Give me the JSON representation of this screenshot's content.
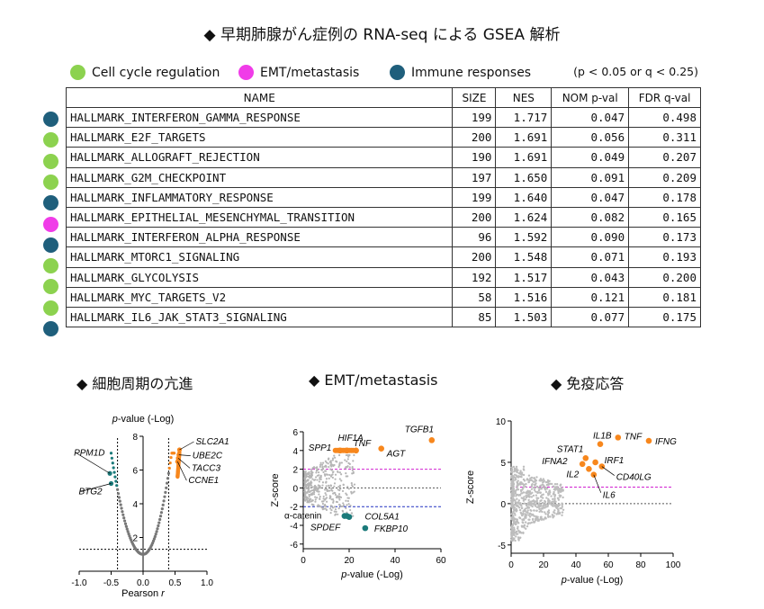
{
  "title": "◆  早期肺腺がん症例の RNA-seq による GSEA 解析",
  "legend": [
    {
      "label": "Cell cycle regulation",
      "color": "#8cd24f"
    },
    {
      "label": "EMT/metastasis",
      "color": "#f03ce8"
    },
    {
      "label": "Immune responses",
      "color": "#1f5f7c"
    }
  ],
  "threshold_note": "(p < 0.05 or q < 0.25)",
  "table": {
    "headers": [
      "NAME",
      "SIZE",
      "NES",
      "NOM p-val",
      "FDR q-val"
    ],
    "rows": [
      {
        "cat": "immune",
        "name": "HALLMARK_INTERFERON_GAMMA_RESPONSE",
        "size": "199",
        "nes": "1.717",
        "p": "0.047",
        "q": "0.498"
      },
      {
        "cat": "cell",
        "name": "HALLMARK_E2F_TARGETS",
        "size": "200",
        "nes": "1.691",
        "p": "0.056",
        "q": "0.311"
      },
      {
        "cat": "cell",
        "name": "HALLMARK_ALLOGRAFT_REJECTION",
        "size": "190",
        "nes": "1.691",
        "p": "0.049",
        "q": "0.207"
      },
      {
        "cat": "cell",
        "name": "HALLMARK_G2M_CHECKPOINT",
        "size": "197",
        "nes": "1.650",
        "p": "0.091",
        "q": "0.209"
      },
      {
        "cat": "immune",
        "name": "HALLMARK_INFLAMMATORY_RESPONSE",
        "size": "199",
        "nes": "1.640",
        "p": "0.047",
        "q": "0.178"
      },
      {
        "cat": "emt",
        "name": "HALLMARK_EPITHELIAL_MESENCHYMAL_TRANSITION",
        "size": "200",
        "nes": "1.624",
        "p": "0.082",
        "q": "0.165"
      },
      {
        "cat": "immune",
        "name": "HALLMARK_INTERFERON_ALPHA_RESPONSE",
        "size": "96",
        "nes": "1.592",
        "p": "0.090",
        "q": "0.173"
      },
      {
        "cat": "cell",
        "name": "HALLMARK_MTORC1_SIGNALING",
        "size": "200",
        "nes": "1.548",
        "p": "0.071",
        "q": "0.193"
      },
      {
        "cat": "cell",
        "name": "HALLMARK_GLYCOLYSIS",
        "size": "192",
        "nes": "1.517",
        "p": "0.043",
        "q": "0.200"
      },
      {
        "cat": "cell",
        "name": "HALLMARK_MYC_TARGETS_V2",
        "size": "58",
        "nes": "1.516",
        "p": "0.121",
        "q": "0.181"
      },
      {
        "cat": "immune",
        "name": "HALLMARK_IL6_JAK_STAT3_SIGNALING",
        "size": "85",
        "nes": "1.503",
        "p": "0.077",
        "q": "0.175"
      }
    ]
  },
  "category_colors": {
    "cell": "#8cd24f",
    "emt": "#f03ce8",
    "immune": "#1f5f7c"
  },
  "panel_titles": [
    "◆  細胞周期の亢進",
    "◆  EMT/metastasis",
    "◆  免疫応答"
  ],
  "chart_data": [
    {
      "type": "scatter",
      "title": "",
      "xlabel": "Pearson r",
      "ylabel": "p-value (-Log)",
      "xlim": [
        -1.0,
        1.0
      ],
      "ylim": [
        0,
        8
      ],
      "xticks": [
        "-1.0",
        "-0.5",
        "0.0",
        "0.5",
        "1.0"
      ],
      "yticks": [
        "2",
        "4",
        "6",
        "8"
      ],
      "highlight_genes": [
        {
          "name": "SLC2A1",
          "x": 0.57,
          "y": 7.2
        },
        {
          "name": "UBE2C",
          "x": 0.56,
          "y": 6.9
        },
        {
          "name": "TACC3",
          "x": 0.55,
          "y": 6.7
        },
        {
          "name": "CCNE1",
          "x": 0.54,
          "y": 6.5
        },
        {
          "name": "PPM1D",
          "x": -0.52,
          "y": 5.8
        },
        {
          "name": "BTG2",
          "x": -0.5,
          "y": 5.2
        }
      ],
      "cutoff_r": [
        -0.4,
        0.4
      ],
      "cutoff_p": 1.3
    },
    {
      "type": "scatter",
      "xlabel": "p-value (-Log)",
      "ylabel": "Z-score",
      "xlim": [
        0,
        60
      ],
      "ylim": [
        -6.5,
        6
      ],
      "xticks": [
        "0",
        "20",
        "40",
        "60"
      ],
      "yticks": [
        "6",
        "4",
        "2",
        "0",
        "-2",
        "-4",
        "-6"
      ],
      "upper_threshold": 2,
      "lower_threshold": -2,
      "points": [
        {
          "name": "TGFB1",
          "x": 56,
          "y": 5.1,
          "group": "up"
        },
        {
          "name": "AGT",
          "x": 34,
          "y": 4.2,
          "group": "up"
        },
        {
          "name": "TNF",
          "x": 23,
          "y": 4.0,
          "group": "up"
        },
        {
          "name": "SPP1",
          "x": 16,
          "y": 4.0,
          "group": "up"
        },
        {
          "name": "HIF1A",
          "x": 19,
          "y": 4.0,
          "group": "up"
        },
        {
          "name": "COL5A1",
          "x": 19,
          "y": -3.0,
          "group": "down"
        },
        {
          "name": "α-catenin",
          "x": 20,
          "y": -3.1,
          "group": "down"
        },
        {
          "name": "SPDEF",
          "x": 18,
          "y": -3.0,
          "group": "down"
        },
        {
          "name": "FKBP10",
          "x": 27,
          "y": -4.3,
          "group": "down"
        }
      ]
    },
    {
      "type": "scatter",
      "xlabel": "p-value (-Log)",
      "ylabel": "Z-score",
      "xlim": [
        0,
        100
      ],
      "ylim": [
        -6,
        10
      ],
      "xticks": [
        "0",
        "20",
        "40",
        "60",
        "80",
        "100"
      ],
      "yticks": [
        "10",
        "5",
        "0",
        "-5"
      ],
      "upper_threshold": 2,
      "points": [
        {
          "name": "IFNG",
          "x": 85,
          "y": 7.6
        },
        {
          "name": "TNF",
          "x": 66,
          "y": 8.0
        },
        {
          "name": "IL1B",
          "x": 55,
          "y": 7.2
        },
        {
          "name": "STAT1",
          "x": 46,
          "y": 5.5
        },
        {
          "name": "IRF1",
          "x": 52,
          "y": 5.0
        },
        {
          "name": "IFNA2",
          "x": 44,
          "y": 4.8
        },
        {
          "name": "IL2",
          "x": 48,
          "y": 4.2
        },
        {
          "name": "CD40LG",
          "x": 56,
          "y": 4.5
        },
        {
          "name": "IL6",
          "x": 51,
          "y": 3.5
        }
      ]
    }
  ]
}
